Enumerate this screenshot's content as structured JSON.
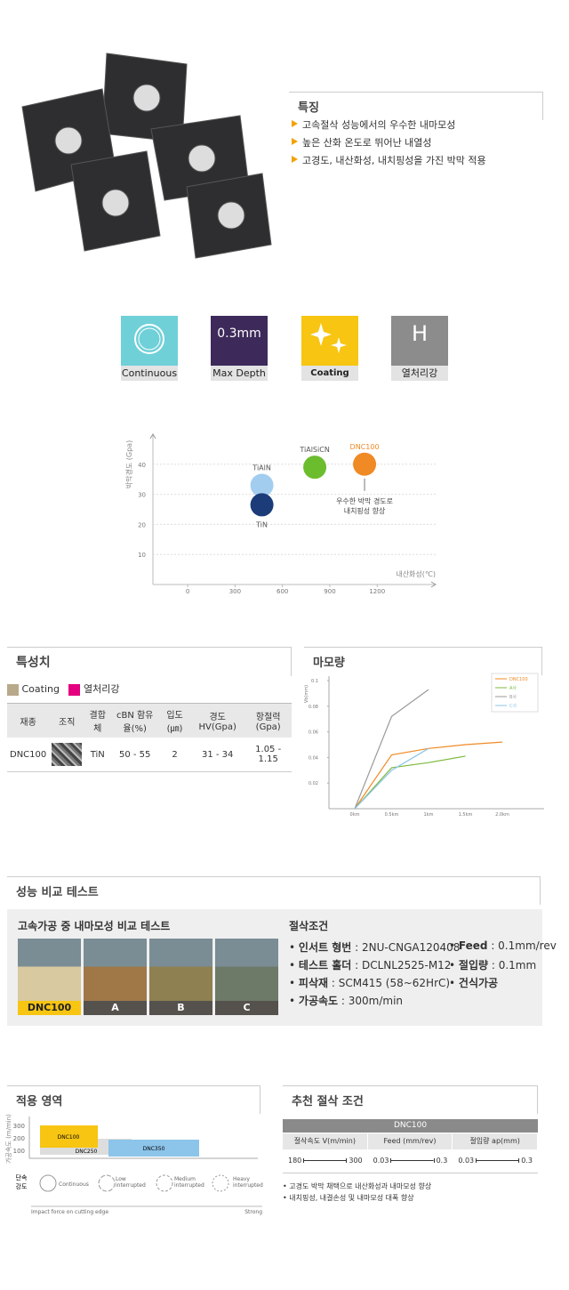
{
  "features": {
    "title": "특징",
    "items": [
      "고속절삭 성능에서의 우수한 내마모성",
      "높은 산화 온도로 뛰어난 내열성",
      "고경도, 내산화성, 내치핑성을 가진 박막 적용"
    ]
  },
  "icons": [
    {
      "label": "Continuous"
    },
    {
      "symbol": "0.3mm",
      "label": "Max Depth"
    },
    {
      "label": "Coating"
    },
    {
      "symbol": "H",
      "label": "열처리강"
    }
  ],
  "hardness_chart": {
    "type": "scatter",
    "y_label": "박막경도 (Gpa)",
    "x_label": "내산화성(℃)",
    "xlim": [
      -220,
      1570
    ],
    "ylim": [
      0,
      50
    ],
    "xticks": [
      0,
      300,
      600,
      900,
      1200
    ],
    "yticks": [
      10,
      20,
      30,
      40
    ],
    "points": [
      {
        "name": "TiAlN",
        "x": 470,
        "y": 33,
        "color": "#a3cdef"
      },
      {
        "name": "TiN",
        "x": 470,
        "y": 26.5,
        "color": "#1b3c78"
      },
      {
        "name": "TiAlSiCN",
        "x": 805,
        "y": 39,
        "color": "#6cbd2e"
      },
      {
        "name": "DNC100",
        "x": 1120,
        "y": 40,
        "color": "#f08a24"
      }
    ],
    "annotation": [
      "우수한 박막 경도로",
      "내치핑성 향상"
    ]
  },
  "properties": {
    "title": "특성치",
    "legend": [
      "Coating",
      "열처리강"
    ],
    "headers": [
      "재종",
      "조직",
      "결합체",
      "cBN 함유율(%)",
      "입도(㎛)",
      "경도 HV(Gpa)",
      "항절력 (Gpa)"
    ],
    "row": {
      "grade": "DNC100",
      "binder": "TiN",
      "cbn": "50 - 55",
      "grain": "2",
      "hardness": "31 - 34",
      "strength": "1.05 - 1.15"
    }
  },
  "wear_chart": {
    "type": "line",
    "title": "마모량",
    "y_label": "Vb(mm)",
    "categories": [
      "0km",
      "0.5km",
      "1km",
      "1.5km",
      "2.0km"
    ],
    "ylim": [
      0,
      0.1
    ],
    "yticks": [
      0.02,
      0.04,
      0.06,
      0.08,
      0.1
    ],
    "series": [
      {
        "name": "DNC100",
        "color": "#f08a24",
        "values": [
          0,
          0.042,
          0.047,
          0.05,
          0.052
        ]
      },
      {
        "name": "A사",
        "color": "#7dba3c",
        "values": [
          0,
          0.032,
          0.036,
          0.041,
          null
        ]
      },
      {
        "name": "B사",
        "color": "#9a9a9a",
        "values": [
          0,
          0.072,
          0.093,
          null,
          null
        ]
      },
      {
        "name": "C사",
        "color": "#8cc4ea",
        "values": [
          0,
          0.03,
          0.047,
          null,
          null
        ]
      }
    ]
  },
  "performance": {
    "title": "성능 비교 테스트",
    "subtitle": "고속가공 중 내마모성 비교 테스트",
    "samples": [
      "DNC100",
      "A",
      "B",
      "C"
    ],
    "conditions_title": "절삭조건",
    "conditions": [
      {
        "label": "인서트 형번",
        "value": ": 2NU-CNGA120408"
      },
      {
        "label": "Feed",
        "value": ": 0.1mm/rev"
      },
      {
        "label": "테스트 홀더",
        "value": ": DCLNL2525-M12"
      },
      {
        "label": "절입량",
        "value": ": 0.1mm"
      },
      {
        "label": "피삭재",
        "value": ": SCM415 (58~62HrC)"
      },
      {
        "label": "건식가공"
      },
      {
        "label": "가공속도",
        "value": ": 300m/min"
      }
    ]
  },
  "application": {
    "title": "적용 영역",
    "y_label": "가공속도 (m/min)",
    "yticks": [
      300,
      200,
      100
    ],
    "grades": [
      "DNC100",
      "DNC250",
      "DNC350"
    ],
    "intensity_label": [
      "단속",
      "강도"
    ],
    "intensity": [
      "Continuous",
      "Low interrupted",
      "Medium interrupted",
      "Heavy interrupted"
    ],
    "x_label": "Impact force on cutting edge",
    "x_end": "Strong"
  },
  "recommend": {
    "title": "추천 절삭 조건",
    "grade": "DNC100",
    "columns": [
      {
        "name": "절삭속도 V(m/min)",
        "min": 180,
        "max": 300
      },
      {
        "name": "Feed (mm/rev)",
        "min": 0.03,
        "max": 0.3
      },
      {
        "name": "절입량 ap(mm)",
        "min": 0.03,
        "max": 0.3
      }
    ],
    "notes": [
      "고경도 박막 채택으로 내산화성과 내마모성 향상",
      "내치핑성, 내결손성 및 내마모성 대폭 향상"
    ]
  }
}
